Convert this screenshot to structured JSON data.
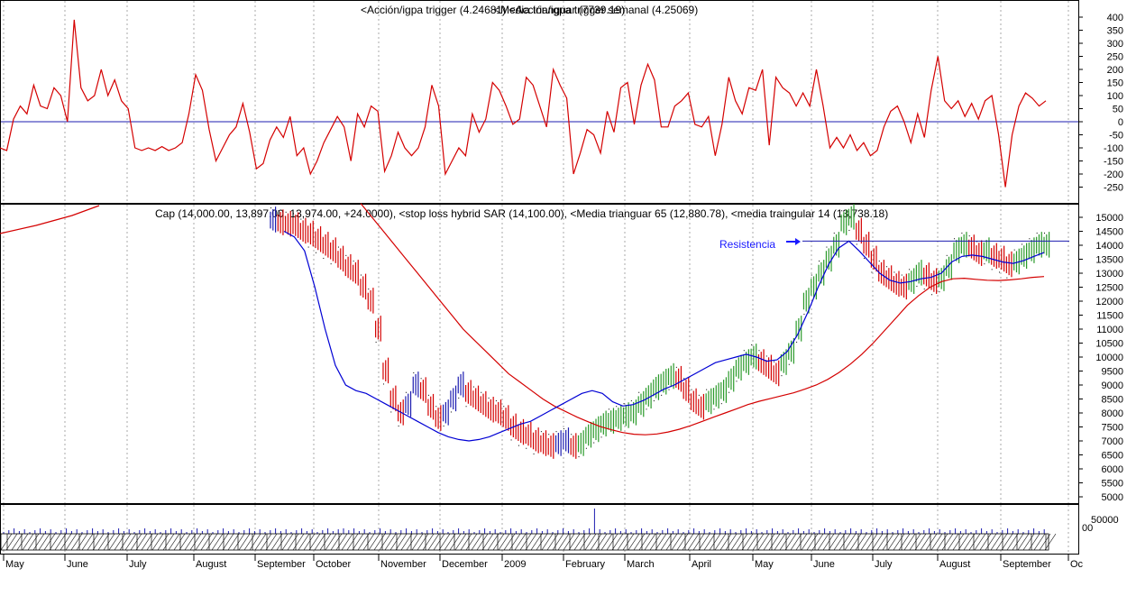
{
  "chart_data": [
    {
      "type": "line",
      "panel": "oscillator",
      "title": "<Acción/igpa trigger (4.24681) <Acción/igpa trigger semanal (4.25069)",
      "title_overlap": "<Media trianguar (7739.19)",
      "ylim": [
        -300,
        450
      ],
      "yticks": [
        400,
        350,
        300,
        250,
        200,
        150,
        100,
        50,
        0,
        -50,
        -100,
        -150,
        -200,
        -250
      ],
      "zero_line": 0,
      "series": [
        {
          "name": "Acción/igpa trigger",
          "color": "#d40000",
          "values": [
            -100,
            -110,
            10,
            60,
            30,
            140,
            60,
            50,
            130,
            100,
            0,
            390,
            130,
            80,
            100,
            200,
            100,
            160,
            80,
            50,
            -100,
            -110,
            -100,
            -110,
            -95,
            -110,
            -100,
            -80,
            30,
            180,
            120,
            -30,
            -150,
            -100,
            -50,
            -20,
            70,
            -40,
            -180,
            -160,
            -70,
            -20,
            -60,
            20,
            -130,
            -100,
            -200,
            -150,
            -80,
            -30,
            20,
            -20,
            -150,
            30,
            -20,
            60,
            40,
            -190,
            -130,
            -40,
            -100,
            -130,
            -100,
            -20,
            140,
            60,
            -200,
            -150,
            -100,
            -130,
            30,
            -40,
            10,
            150,
            120,
            60,
            -10,
            10,
            170,
            140,
            60,
            -20,
            200,
            140,
            90,
            -200,
            -120,
            -30,
            -50,
            -120,
            40,
            -40,
            130,
            150,
            -10,
            140,
            220,
            160,
            -20,
            -20,
            60,
            80,
            110,
            -10,
            -20,
            20,
            -130,
            -10,
            170,
            80,
            30,
            130,
            120,
            200,
            -90,
            170,
            130,
            110,
            60,
            110,
            60,
            200,
            60,
            -100,
            -60,
            -100,
            -50,
            -110,
            -80,
            -130,
            -110,
            -20,
            40,
            60,
            0,
            -80,
            30,
            -60,
            120,
            250,
            80,
            50,
            80,
            20,
            70,
            10,
            80,
            100,
            -50,
            -250,
            -50,
            60,
            110,
            90,
            60,
            80
          ]
        }
      ]
    },
    {
      "type": "candlestick",
      "panel": "price",
      "title": "Cap (14,000.00, 13,897.00, 13,974.00, +24.0000), <stop loss hybrid SAR (14,100.00), <Media trianguar  65 (12,880.78), <media traingular 14 (13,738.18)",
      "ylim": [
        4700,
        15500
      ],
      "yticks": [
        15000,
        14500,
        14000,
        13500,
        13000,
        12500,
        12000,
        11500,
        11000,
        10500,
        10000,
        9500,
        9000,
        8500,
        8000,
        7500,
        7000,
        6500,
        6000,
        5500,
        5000
      ],
      "close": [
        14900,
        14800,
        14750,
        14700,
        14500,
        14400,
        14200,
        14000,
        13800,
        13500,
        13200,
        13000,
        12500,
        12000,
        11000,
        9500,
        8500,
        8000,
        8300,
        9000,
        8800,
        8200,
        7800,
        8000,
        8500,
        9000,
        8700,
        8500,
        8300,
        8100,
        8000,
        7800,
        7500,
        7300,
        7200,
        7000,
        6900,
        6800,
        6900,
        7000,
        6800,
        6900,
        7200,
        7400,
        7600,
        7700,
        7800,
        7900,
        8000,
        8300,
        8600,
        8900,
        9100,
        9300,
        9200,
        8800,
        8400,
        8200,
        8400,
        8600,
        8800,
        9200,
        9600,
        9800,
        10000,
        9800,
        9600,
        9400,
        9800,
        10200,
        11000,
        12000,
        12500,
        13000,
        13500,
        14000,
        14800,
        15000,
        14500,
        14000,
        13500,
        13000,
        12800,
        12600,
        12500,
        12700,
        13000,
        12900,
        12700,
        12800,
        13200,
        13800,
        14000,
        13900,
        13700,
        13800,
        13600,
        13500,
        13300,
        13400,
        13600,
        13800,
        14000,
        14000
      ],
      "annotation": {
        "text": "Resistencia",
        "level": 14150
      },
      "series": [
        {
          "name": "stop loss hybrid SAR",
          "color": "#000000",
          "style": "dots"
        },
        {
          "name": "Media trianguar 65",
          "color": "#d40000",
          "values": [
            15500,
            15000,
            14500,
            14000,
            13500,
            13000,
            12500,
            12000,
            11500,
            11000,
            10600,
            10200,
            9800,
            9400,
            9100,
            8800,
            8500,
            8250,
            8050,
            7850,
            7680,
            7520,
            7400,
            7300,
            7240,
            7220,
            7250,
            7320,
            7420,
            7550,
            7700,
            7850,
            8000,
            8150,
            8300,
            8420,
            8520,
            8620,
            8720,
            8850,
            9000,
            9200,
            9450,
            9750,
            10100,
            10500,
            10950,
            11400,
            11850,
            12200,
            12500,
            12700,
            12800,
            12820,
            12780,
            12750,
            12740,
            12760,
            12800,
            12850,
            12880
          ]
        },
        {
          "name": "media traingular 14",
          "color": "#0000d4",
          "values": [
            14500,
            14300,
            13800,
            12500,
            11000,
            9700,
            9000,
            8800,
            8700,
            8500,
            8300,
            8100,
            7900,
            7700,
            7500,
            7300,
            7150,
            7050,
            7000,
            7050,
            7150,
            7300,
            7450,
            7600,
            7700,
            7900,
            8100,
            8300,
            8500,
            8700,
            8800,
            8700,
            8400,
            8250,
            8300,
            8450,
            8650,
            8850,
            9000,
            9200,
            9400,
            9600,
            9800,
            9900,
            10000,
            10100,
            10000,
            9850,
            9900,
            10200,
            10800,
            11600,
            12500,
            13300,
            13900,
            14150,
            13800,
            13400,
            13000,
            12750,
            12650,
            12700,
            12800,
            12850,
            13000,
            13400,
            13600,
            13650,
            13600,
            13500,
            13400,
            13350,
            13450,
            13600,
            13738
          ]
        }
      ]
    },
    {
      "type": "bar",
      "panel": "volume",
      "yticks": [
        50000
      ],
      "ylabel_tick": "00"
    }
  ],
  "x_axis": {
    "labels": [
      "May",
      "June",
      "July",
      "August",
      "September",
      "October",
      "November",
      "December",
      "2009",
      "February",
      "March",
      "April",
      "May",
      "June",
      "July",
      "August",
      "September",
      "Oc"
    ]
  }
}
